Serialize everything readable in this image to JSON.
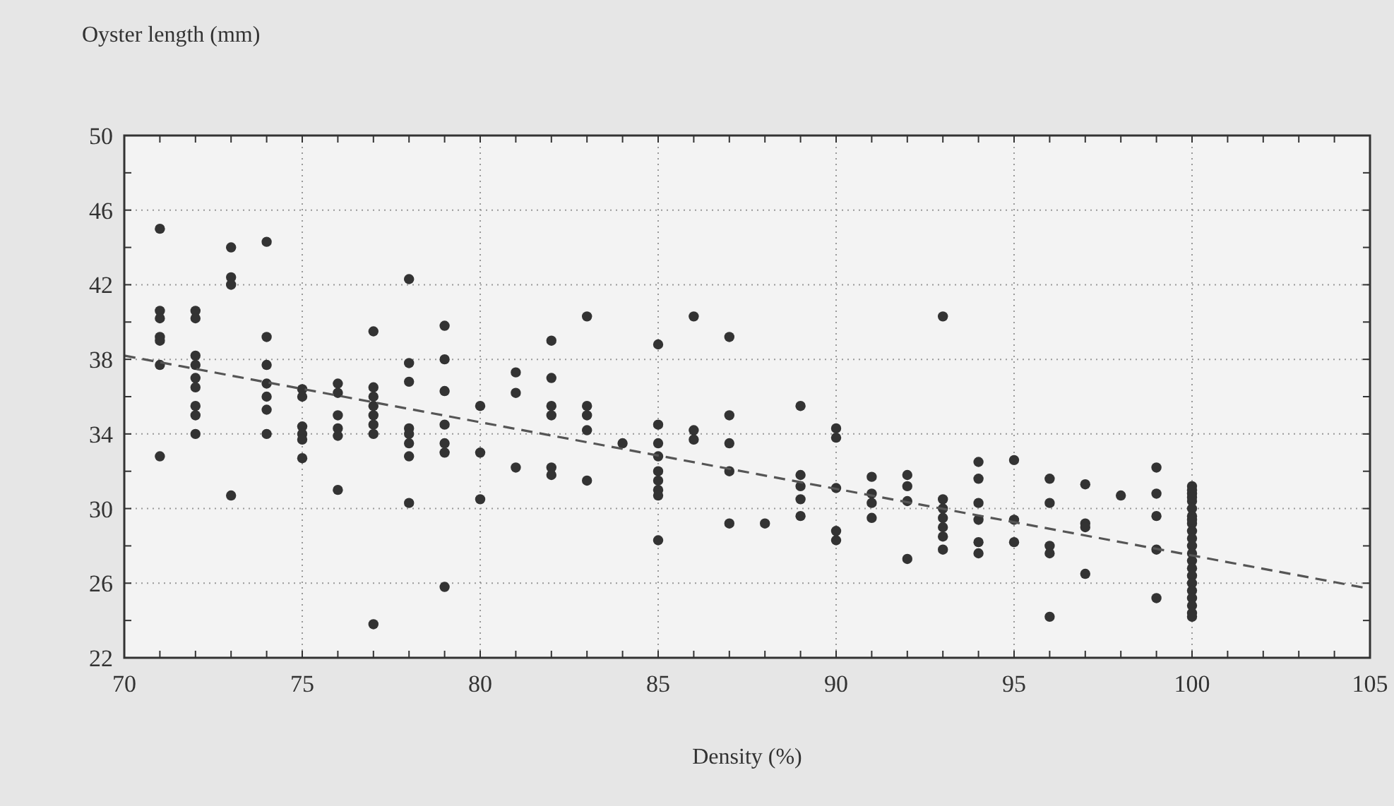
{
  "chart_data": {
    "type": "scatter",
    "xlabel": "Density (%)",
    "ylabel": "Oyster length (mm)",
    "xlim": [
      70,
      105
    ],
    "xticks": [
      70,
      75,
      80,
      85,
      90,
      95,
      100,
      105
    ],
    "ylim": [
      22,
      50
    ],
    "yticks": [
      22,
      26,
      30,
      34,
      38,
      42,
      46,
      50
    ],
    "grid": true,
    "marker": "circle",
    "series": [
      {
        "color": "#333333",
        "x": [
          71,
          71,
          71,
          71,
          71,
          71,
          71,
          72,
          72,
          72,
          72,
          72,
          72,
          72,
          72,
          72,
          73,
          73,
          73,
          73,
          74,
          74,
          74,
          74,
          74,
          74,
          74,
          75,
          75,
          75,
          75,
          75,
          75,
          76,
          76,
          76,
          76,
          76,
          76,
          77,
          77,
          77,
          77,
          77,
          77,
          77,
          77,
          78,
          78,
          78,
          78,
          78,
          78,
          78,
          78,
          79,
          79,
          79,
          79,
          79,
          79,
          79,
          80,
          80,
          80,
          81,
          81,
          81,
          82,
          82,
          82,
          82,
          82,
          82,
          83,
          83,
          83,
          83,
          83,
          84,
          85,
          85,
          85,
          85,
          85,
          85,
          85,
          85,
          85,
          86,
          86,
          86,
          87,
          87,
          87,
          87,
          87,
          88,
          89,
          89,
          89,
          89,
          89,
          90,
          90,
          90,
          90,
          90,
          91,
          91,
          91,
          91,
          92,
          92,
          92,
          92,
          93,
          93,
          93,
          93,
          93,
          93,
          93,
          94,
          94,
          94,
          94,
          94,
          94,
          95,
          95,
          95,
          96,
          96,
          96,
          96,
          96,
          97,
          97,
          97,
          97,
          98,
          99,
          99,
          99,
          99,
          99,
          100,
          100,
          100,
          100,
          100,
          100,
          100,
          100,
          100,
          100,
          100,
          100,
          100,
          100,
          100,
          100,
          100,
          100,
          100,
          100,
          100,
          100
        ],
        "values": [
          45,
          40.6,
          40.2,
          39.2,
          39,
          37.7,
          32.8,
          40.6,
          40.2,
          38.2,
          37.7,
          37,
          36.5,
          35.5,
          35,
          34,
          44,
          42.4,
          42,
          30.7,
          44.3,
          39.2,
          37.7,
          36.7,
          36,
          35.3,
          34,
          36.4,
          36,
          34.4,
          34,
          33.7,
          32.7,
          36.7,
          36.2,
          35,
          34.3,
          33.9,
          31,
          39.5,
          36.5,
          36,
          35.5,
          35,
          34.5,
          34,
          23.8,
          42.3,
          37.8,
          36.8,
          34.3,
          34,
          33.5,
          32.8,
          30.3,
          39.8,
          38,
          36.3,
          34.5,
          33.5,
          33,
          25.8,
          35.5,
          33,
          30.5,
          37.3,
          36.2,
          32.2,
          39,
          37,
          35.5,
          35,
          32.2,
          31.8,
          40.3,
          35.5,
          35,
          34.2,
          31.5,
          33.5,
          38.8,
          34.5,
          33.5,
          32.8,
          32,
          31.5,
          31,
          30.7,
          28.3,
          40.3,
          34.2,
          33.7,
          39.2,
          35,
          33.5,
          32,
          29.2,
          29.2,
          35.5,
          31.8,
          31.2,
          30.5,
          29.6,
          34.3,
          33.8,
          31.1,
          28.8,
          28.3,
          31.7,
          30.8,
          30.3,
          29.5,
          31.8,
          31.2,
          30.4,
          27.3,
          40.3,
          30.5,
          30,
          29.5,
          29,
          28.5,
          27.8,
          32.5,
          31.6,
          30.3,
          29.4,
          28.2,
          27.6,
          32.6,
          29.4,
          28.2,
          31.6,
          30.3,
          28,
          27.6,
          24.2,
          31.3,
          29.2,
          29,
          26.5,
          30.7,
          32.2,
          30.8,
          29.6,
          27.8,
          25.2,
          31.2,
          30.8,
          30.4,
          30,
          29.6,
          29.2,
          28.8,
          28.4,
          28,
          27.6,
          27.2,
          26.8,
          26.4,
          26,
          25.6,
          25.2,
          24.8,
          24.4,
          24.2,
          31,
          30.6,
          29.4
        ]
      },
      {
        "type": "line",
        "color": "#555555",
        "x": [
          70,
          105
        ],
        "values": [
          38.2,
          25.7
        ],
        "line_style": "dashed",
        "marker": "none"
      }
    ]
  }
}
